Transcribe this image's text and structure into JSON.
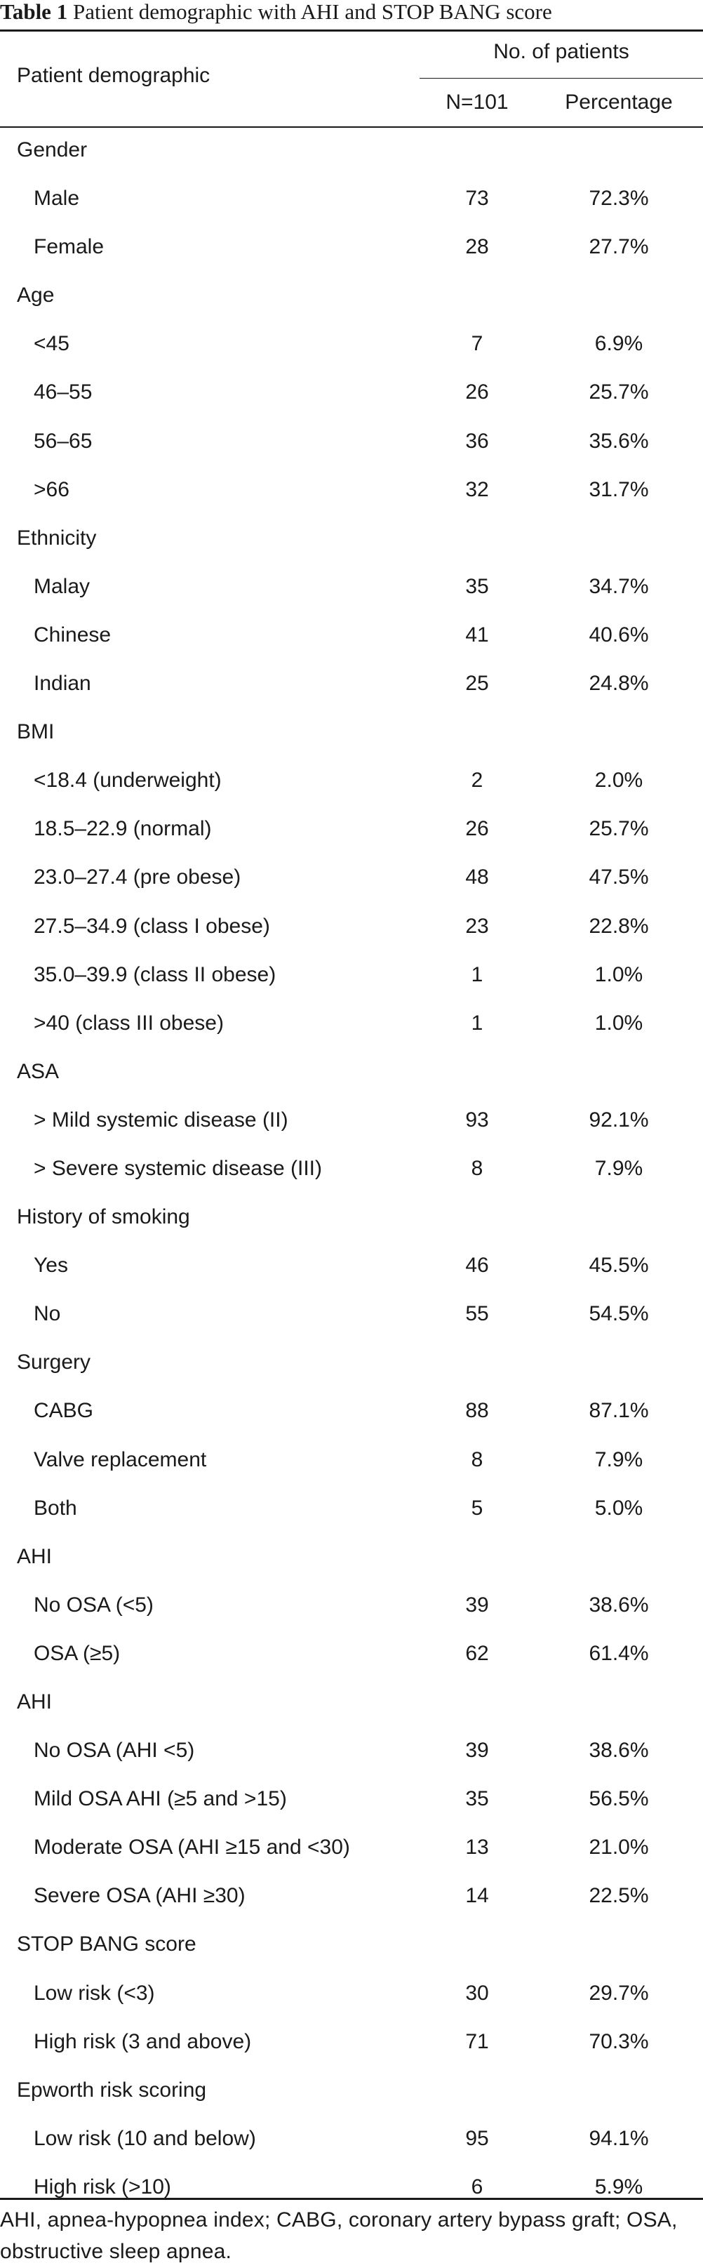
{
  "caption": {
    "number": "Table 1",
    "title": "Patient demographic with AHI and STOP BANG score"
  },
  "header": {
    "row_label": "Patient demographic",
    "group_label": "No. of patients",
    "col_n": "N=101",
    "col_pct": "Percentage"
  },
  "rows": [
    {
      "type": "section",
      "label": "Gender"
    },
    {
      "type": "item",
      "label": "Male",
      "n": "73",
      "pct": "72.3%"
    },
    {
      "type": "item",
      "label": "Female",
      "n": "28",
      "pct": "27.7%"
    },
    {
      "type": "section",
      "label": "Age"
    },
    {
      "type": "item",
      "label": "<45",
      "n": "7",
      "pct": "6.9%"
    },
    {
      "type": "item",
      "label": "46–55",
      "n": "26",
      "pct": "25.7%"
    },
    {
      "type": "item",
      "label": "56–65",
      "n": "36",
      "pct": "35.6%"
    },
    {
      "type": "item",
      "label": ">66",
      "n": "32",
      "pct": "31.7%"
    },
    {
      "type": "section",
      "label": "Ethnicity"
    },
    {
      "type": "item",
      "label": "Malay",
      "n": "35",
      "pct": "34.7%"
    },
    {
      "type": "item",
      "label": "Chinese",
      "n": "41",
      "pct": "40.6%"
    },
    {
      "type": "item",
      "label": "Indian",
      "n": "25",
      "pct": "24.8%"
    },
    {
      "type": "section",
      "label": "BMI"
    },
    {
      "type": "item",
      "label": "<18.4 (underweight)",
      "n": "2",
      "pct": "2.0%"
    },
    {
      "type": "item",
      "label": "18.5–22.9 (normal)",
      "n": "26",
      "pct": "25.7%"
    },
    {
      "type": "item",
      "label": "23.0–27.4 (pre obese)",
      "n": "48",
      "pct": "47.5%"
    },
    {
      "type": "item",
      "label": "27.5–34.9 (class I obese)",
      "n": "23",
      "pct": "22.8%"
    },
    {
      "type": "item",
      "label": "35.0–39.9 (class II obese)",
      "n": "1",
      "pct": "1.0%"
    },
    {
      "type": "item",
      "label": ">40 (class III obese)",
      "n": "1",
      "pct": "1.0%"
    },
    {
      "type": "section",
      "label": "ASA"
    },
    {
      "type": "item",
      "label": "> Mild systemic disease (II)",
      "n": "93",
      "pct": "92.1%"
    },
    {
      "type": "item",
      "label": "> Severe systemic disease (III)",
      "n": "8",
      "pct": "7.9%"
    },
    {
      "type": "section",
      "label": "History of smoking"
    },
    {
      "type": "item",
      "label": "Yes",
      "n": "46",
      "pct": "45.5%"
    },
    {
      "type": "item",
      "label": "No",
      "n": "55",
      "pct": "54.5%"
    },
    {
      "type": "section",
      "label": "Surgery"
    },
    {
      "type": "item",
      "label": "CABG",
      "n": "88",
      "pct": "87.1%"
    },
    {
      "type": "item",
      "label": "Valve replacement",
      "n": "8",
      "pct": "7.9%"
    },
    {
      "type": "item",
      "label": "Both",
      "n": "5",
      "pct": "5.0%"
    },
    {
      "type": "section",
      "label": "AHI"
    },
    {
      "type": "item",
      "label": "No OSA (<5)",
      "n": "39",
      "pct": "38.6%"
    },
    {
      "type": "item",
      "label": "OSA (≥5)",
      "n": "62",
      "pct": "61.4%"
    },
    {
      "type": "section",
      "label": "AHI"
    },
    {
      "type": "item",
      "label": "No OSA (AHI <5)",
      "n": "39",
      "pct": "38.6%"
    },
    {
      "type": "item",
      "label": "Mild OSA AHI (≥5 and >15)",
      "n": "35",
      "pct": "56.5%"
    },
    {
      "type": "item",
      "label": "Moderate OSA (AHI ≥15 and <30)",
      "n": "13",
      "pct": "21.0%"
    },
    {
      "type": "item",
      "label": "Severe OSA (AHI ≥30)",
      "n": "14",
      "pct": "22.5%"
    },
    {
      "type": "section",
      "label": "STOP BANG score"
    },
    {
      "type": "item",
      "label": "Low risk (<3)",
      "n": "30",
      "pct": "29.7%"
    },
    {
      "type": "item",
      "label": "High risk (3 and above)",
      "n": "71",
      "pct": "70.3%"
    },
    {
      "type": "section",
      "label": "Epworth risk scoring"
    },
    {
      "type": "item",
      "label": "Low risk (10 and below)",
      "n": "95",
      "pct": "94.1%"
    },
    {
      "type": "item",
      "label": "High risk (>10)",
      "n": "6",
      "pct": "5.9%"
    }
  ],
  "footnote": "AHI, apnea-hypopnea index; CABG, coronary artery bypass graft; OSA, obstructive sleep apnea."
}
